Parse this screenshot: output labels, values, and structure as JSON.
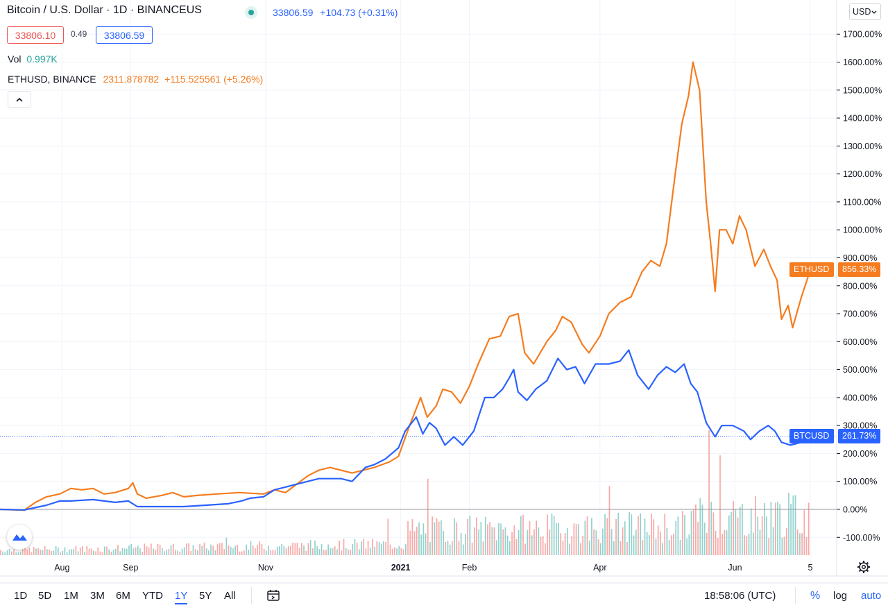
{
  "header": {
    "symbol_title": "Bitcoin / U.S. Dollar · 1D · BINANCEUS",
    "status_color": "#26a69a",
    "last_price": "33806.59",
    "change": "+104.73 (+0.31%)",
    "bid": "33806.10",
    "spread": "0.49",
    "ask": "33806.59",
    "vol_label": "Vol",
    "vol_value": "0.997K",
    "compare_symbol": "ETHUSD, BINANCE",
    "compare_price": "2311.878782",
    "compare_change": "+115.525561 (+5.26%)",
    "collapse_icon": "chevron-up-icon"
  },
  "currency_selector": "USD",
  "chart_data": {
    "type": "line",
    "y_unit": "percent change",
    "ylim": [
      -150,
      1790
    ],
    "y_ticks": [
      "1700.00%",
      "1600.00%",
      "1500.00%",
      "1400.00%",
      "1300.00%",
      "1200.00%",
      "1100.00%",
      "1000.00%",
      "900.00%",
      "800.00%",
      "700.00%",
      "600.00%",
      "500.00%",
      "400.00%",
      "300.00%",
      "200.00%",
      "100.00%",
      "0.00%",
      "-100.00%"
    ],
    "y_tick_values": [
      1700,
      1600,
      1500,
      1400,
      1300,
      1200,
      1100,
      1000,
      900,
      800,
      700,
      600,
      500,
      400,
      300,
      200,
      100,
      0,
      -100
    ],
    "x_ticks": [
      "Aug",
      "Sep",
      "Nov",
      "2021",
      "Feb",
      "Apr",
      "Jun",
      "5"
    ],
    "x_tick_dates": [
      "2020-08-01",
      "2020-09-01",
      "2020-11-01",
      "2021-01-01",
      "2021-02-01",
      "2021-04-01",
      "2021-06-01",
      "2021-07-05"
    ],
    "x_range": [
      "2020-07-04",
      "2021-07-05"
    ],
    "grid": true,
    "series": [
      {
        "name": "ETHUSD",
        "label": "856.33%",
        "last_value": 856.33,
        "color": "#f57c1f",
        "points": [
          [
            "2020-07-04",
            0
          ],
          [
            "2020-07-15",
            -3
          ],
          [
            "2020-07-20",
            25
          ],
          [
            "2020-07-25",
            45
          ],
          [
            "2020-07-31",
            55
          ],
          [
            "2020-08-05",
            75
          ],
          [
            "2020-08-10",
            70
          ],
          [
            "2020-08-15",
            75
          ],
          [
            "2020-08-20",
            55
          ],
          [
            "2020-08-25",
            60
          ],
          [
            "2020-08-31",
            75
          ],
          [
            "2020-09-02",
            95
          ],
          [
            "2020-09-04",
            55
          ],
          [
            "2020-09-08",
            40
          ],
          [
            "2020-09-15",
            50
          ],
          [
            "2020-09-20",
            60
          ],
          [
            "2020-09-25",
            45
          ],
          [
            "2020-10-01",
            50
          ],
          [
            "2020-10-10",
            55
          ],
          [
            "2020-10-20",
            60
          ],
          [
            "2020-10-31",
            55
          ],
          [
            "2020-11-05",
            70
          ],
          [
            "2020-11-10",
            60
          ],
          [
            "2020-11-15",
            90
          ],
          [
            "2020-11-20",
            120
          ],
          [
            "2020-11-25",
            140
          ],
          [
            "2020-11-30",
            150
          ],
          [
            "2020-12-05",
            140
          ],
          [
            "2020-12-10",
            130
          ],
          [
            "2020-12-15",
            140
          ],
          [
            "2020-12-20",
            150
          ],
          [
            "2020-12-27",
            170
          ],
          [
            "2020-12-31",
            190
          ],
          [
            "2021-01-05",
            300
          ],
          [
            "2021-01-10",
            400
          ],
          [
            "2021-01-13",
            330
          ],
          [
            "2021-01-17",
            370
          ],
          [
            "2021-01-20",
            430
          ],
          [
            "2021-01-24",
            420
          ],
          [
            "2021-01-28",
            380
          ],
          [
            "2021-02-01",
            440
          ],
          [
            "2021-02-05",
            520
          ],
          [
            "2021-02-10",
            610
          ],
          [
            "2021-02-15",
            620
          ],
          [
            "2021-02-19",
            690
          ],
          [
            "2021-02-23",
            700
          ],
          [
            "2021-02-26",
            560
          ],
          [
            "2021-03-02",
            520
          ],
          [
            "2021-03-08",
            600
          ],
          [
            "2021-03-12",
            640
          ],
          [
            "2021-03-15",
            690
          ],
          [
            "2021-03-19",
            670
          ],
          [
            "2021-03-24",
            590
          ],
          [
            "2021-03-27",
            560
          ],
          [
            "2021-04-01",
            620
          ],
          [
            "2021-04-05",
            700
          ],
          [
            "2021-04-10",
            740
          ],
          [
            "2021-04-15",
            760
          ],
          [
            "2021-04-20",
            850
          ],
          [
            "2021-04-24",
            890
          ],
          [
            "2021-04-28",
            870
          ],
          [
            "2021-05-01",
            950
          ],
          [
            "2021-05-05",
            1200
          ],
          [
            "2021-05-08",
            1380
          ],
          [
            "2021-05-11",
            1480
          ],
          [
            "2021-05-13",
            1600
          ],
          [
            "2021-05-16",
            1500
          ],
          [
            "2021-05-19",
            1100
          ],
          [
            "2021-05-21",
            950
          ],
          [
            "2021-05-23",
            780
          ],
          [
            "2021-05-25",
            1000
          ],
          [
            "2021-05-28",
            1000
          ],
          [
            "2021-05-31",
            950
          ],
          [
            "2021-06-03",
            1050
          ],
          [
            "2021-06-06",
            1000
          ],
          [
            "2021-06-10",
            870
          ],
          [
            "2021-06-14",
            930
          ],
          [
            "2021-06-17",
            870
          ],
          [
            "2021-06-20",
            820
          ],
          [
            "2021-06-22",
            680
          ],
          [
            "2021-06-25",
            730
          ],
          [
            "2021-06-27",
            650
          ],
          [
            "2021-07-01",
            760
          ],
          [
            "2021-07-05",
            856.33
          ]
        ]
      },
      {
        "name": "BTCUSD",
        "label": "261.73%",
        "last_value": 261.73,
        "color": "#2962ff",
        "points": [
          [
            "2020-07-04",
            0
          ],
          [
            "2020-07-15",
            -2
          ],
          [
            "2020-07-25",
            15
          ],
          [
            "2020-07-31",
            30
          ],
          [
            "2020-08-05",
            30
          ],
          [
            "2020-08-15",
            35
          ],
          [
            "2020-08-25",
            25
          ],
          [
            "2020-08-31",
            30
          ],
          [
            "2020-09-04",
            10
          ],
          [
            "2020-09-15",
            10
          ],
          [
            "2020-09-25",
            10
          ],
          [
            "2020-10-05",
            15
          ],
          [
            "2020-10-15",
            20
          ],
          [
            "2020-10-21",
            30
          ],
          [
            "2020-10-25",
            40
          ],
          [
            "2020-10-31",
            45
          ],
          [
            "2020-11-05",
            70
          ],
          [
            "2020-11-10",
            80
          ],
          [
            "2020-11-15",
            90
          ],
          [
            "2020-11-20",
            100
          ],
          [
            "2020-11-25",
            110
          ],
          [
            "2020-11-30",
            110
          ],
          [
            "2020-12-05",
            110
          ],
          [
            "2020-12-10",
            100
          ],
          [
            "2020-12-16",
            150
          ],
          [
            "2020-12-20",
            160
          ],
          [
            "2020-12-25",
            180
          ],
          [
            "2020-12-31",
            220
          ],
          [
            "2021-01-03",
            280
          ],
          [
            "2021-01-08",
            330
          ],
          [
            "2021-01-11",
            270
          ],
          [
            "2021-01-14",
            310
          ],
          [
            "2021-01-17",
            290
          ],
          [
            "2021-01-21",
            230
          ],
          [
            "2021-01-25",
            260
          ],
          [
            "2021-01-29",
            230
          ],
          [
            "2021-02-03",
            280
          ],
          [
            "2021-02-08",
            400
          ],
          [
            "2021-02-12",
            400
          ],
          [
            "2021-02-16",
            430
          ],
          [
            "2021-02-19",
            470
          ],
          [
            "2021-02-21",
            500
          ],
          [
            "2021-02-23",
            420
          ],
          [
            "2021-02-27",
            390
          ],
          [
            "2021-03-03",
            430
          ],
          [
            "2021-03-08",
            460
          ],
          [
            "2021-03-13",
            540
          ],
          [
            "2021-03-17",
            500
          ],
          [
            "2021-03-21",
            510
          ],
          [
            "2021-03-25",
            450
          ],
          [
            "2021-03-30",
            520
          ],
          [
            "2021-04-05",
            520
          ],
          [
            "2021-04-10",
            530
          ],
          [
            "2021-04-14",
            570
          ],
          [
            "2021-04-18",
            480
          ],
          [
            "2021-04-23",
            430
          ],
          [
            "2021-04-27",
            480
          ],
          [
            "2021-05-01",
            510
          ],
          [
            "2021-05-05",
            490
          ],
          [
            "2021-05-09",
            520
          ],
          [
            "2021-05-12",
            450
          ],
          [
            "2021-05-15",
            420
          ],
          [
            "2021-05-19",
            310
          ],
          [
            "2021-05-23",
            260
          ],
          [
            "2021-05-26",
            300
          ],
          [
            "2021-05-31",
            300
          ],
          [
            "2021-06-05",
            280
          ],
          [
            "2021-06-08",
            250
          ],
          [
            "2021-06-12",
            280
          ],
          [
            "2021-06-16",
            300
          ],
          [
            "2021-06-19",
            280
          ],
          [
            "2021-06-22",
            240
          ],
          [
            "2021-06-26",
            230
          ],
          [
            "2021-07-01",
            240
          ],
          [
            "2021-07-05",
            261.73
          ]
        ]
      }
    ],
    "volume": {
      "up_color": "#26a69a",
      "down_color": "#ef5350"
    }
  },
  "toolbar": {
    "ranges": [
      "1D",
      "5D",
      "1M",
      "3M",
      "6M",
      "YTD",
      "1Y",
      "5Y",
      "All"
    ],
    "active_range": "1Y",
    "date_range_icon": "date-range-icon",
    "clock": "18:58:06 (UTC)",
    "percent": "%",
    "log": "log",
    "auto": "auto",
    "settings_icon": "gear-icon",
    "logo_icon": "tradingview-logo-icon"
  }
}
